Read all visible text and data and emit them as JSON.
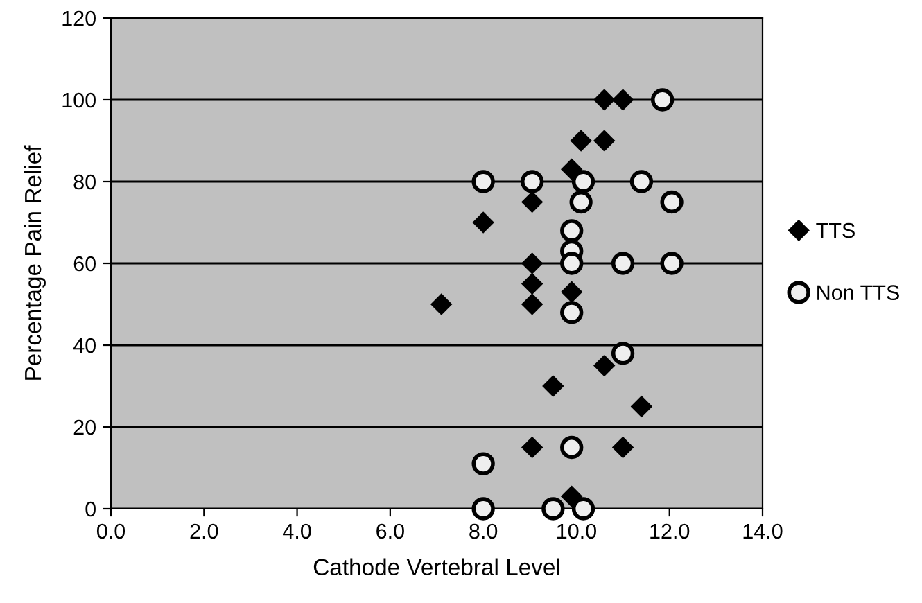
{
  "chart_data": {
    "type": "scatter",
    "xlabel": "Cathode Vertebral Level",
    "ylabel": "Percentage Pain Relief",
    "xlim": [
      0,
      14
    ],
    "ylim": [
      0,
      120
    ],
    "xticks": [
      {
        "value": 0,
        "label": "0.0"
      },
      {
        "value": 2,
        "label": "2.0"
      },
      {
        "value": 4,
        "label": "4.0"
      },
      {
        "value": 6,
        "label": "6.0"
      },
      {
        "value": 8,
        "label": "8.0"
      },
      {
        "value": 10,
        "label": "10.0"
      },
      {
        "value": 12,
        "label": "12.0"
      },
      {
        "value": 14,
        "label": "14.0"
      }
    ],
    "yticks": [
      0,
      20,
      40,
      60,
      80,
      100,
      120
    ],
    "grid": "y",
    "legend": "right",
    "series": [
      {
        "name": "TTS",
        "color": "#000000",
        "marker": "diamond",
        "x": [
          10.6,
          11.0,
          10.1,
          10.6,
          9.9,
          9.05,
          8.0,
          9.05,
          9.05,
          9.05,
          7.1,
          9.9,
          10.6,
          9.5,
          11.4,
          9.05,
          11.0,
          9.9
        ],
        "values": [
          100,
          100,
          90,
          90,
          83,
          75,
          70,
          60,
          55,
          50,
          50,
          53,
          35,
          30,
          25,
          15,
          15,
          3
        ]
      },
      {
        "name": "Non TTS",
        "color": "#eeeeee",
        "marker": "circle",
        "x": [
          11.85,
          8.0,
          9.05,
          10.15,
          11.4,
          10.1,
          12.05,
          9.9,
          9.9,
          9.9,
          11.0,
          12.05,
          9.9,
          11.0,
          9.9,
          8.0,
          8.0,
          9.5,
          10.15
        ],
        "values": [
          100,
          80,
          80,
          80,
          80,
          75,
          75,
          68,
          63,
          60,
          60,
          60,
          48,
          38,
          15,
          11,
          0,
          0,
          0
        ]
      }
    ]
  }
}
